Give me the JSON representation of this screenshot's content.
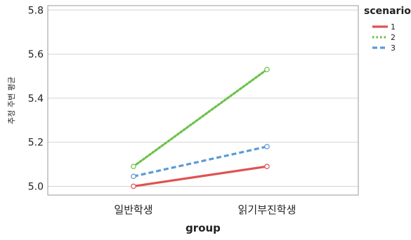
{
  "chart_data": {
    "type": "line",
    "title": "",
    "xlabel": "group",
    "ylabel": "추정 주변 평균",
    "categories": [
      "일반학생",
      "읽기부진학생"
    ],
    "ylim": [
      4.96,
      5.82
    ],
    "yticks": [
      "5.0",
      "5.2",
      "5.4",
      "5.6",
      "5.8"
    ],
    "grid": "horizontal",
    "legend_title": "scenario",
    "legend_position": "top-right",
    "series": [
      {
        "name": "1",
        "values": [
          5.0,
          5.09
        ],
        "color": "#e05252",
        "dash": "solid"
      },
      {
        "name": "2",
        "values": [
          5.09,
          5.53
        ],
        "color": "#6cc24a",
        "dash": "dotted"
      },
      {
        "name": "3",
        "values": [
          5.045,
          5.18
        ],
        "color": "#5b9bd5",
        "dash": "dashed"
      }
    ]
  }
}
